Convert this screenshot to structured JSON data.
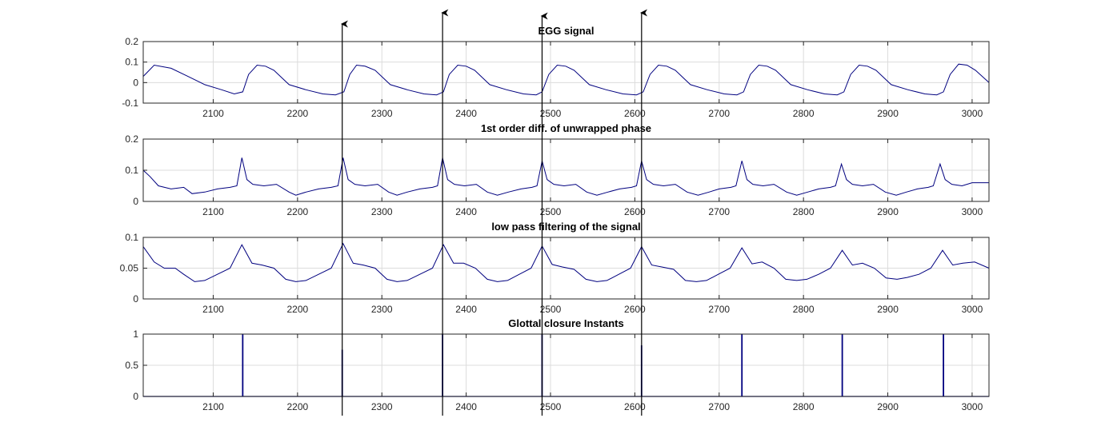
{
  "colors": {
    "series": "#00007f",
    "grid": "#dcdcdc",
    "axis": "#262626",
    "arrow": "#000000"
  },
  "chart_data": [
    {
      "type": "line",
      "title": "EGG signal",
      "xlim": [
        2017,
        3020
      ],
      "ylim": [
        -0.1,
        0.2
      ],
      "xticks": [
        "2100",
        "2200",
        "2300",
        "2400",
        "2500",
        "2600",
        "2700",
        "2800",
        "2900",
        "3000"
      ],
      "yticks": [
        "-0.1",
        "0",
        "0.1",
        "0.2"
      ],
      "grid": true,
      "series": [
        {
          "x": [
            2017,
            2030,
            2050,
            2070,
            2090,
            2110,
            2125,
            2135,
            2142,
            2152,
            2162,
            2172,
            2190,
            2210,
            2230,
            2245,
            2255,
            2262,
            2270,
            2280,
            2292,
            2310,
            2330,
            2350,
            2365,
            2373,
            2380,
            2390,
            2400,
            2410,
            2428,
            2448,
            2468,
            2483,
            2490,
            2498,
            2508,
            2518,
            2528,
            2546,
            2566,
            2586,
            2602,
            2610,
            2618,
            2628,
            2638,
            2648,
            2666,
            2686,
            2706,
            2721,
            2729,
            2737,
            2747,
            2757,
            2767,
            2785,
            2805,
            2825,
            2840,
            2848,
            2856,
            2866,
            2876,
            2886,
            2904,
            2924,
            2944,
            2958,
            2966,
            2974,
            2984,
            2994,
            3004,
            3020
          ],
          "y": [
            0.03,
            0.085,
            0.07,
            0.03,
            -0.01,
            -0.035,
            -0.055,
            -0.045,
            0.04,
            0.085,
            0.08,
            0.06,
            -0.01,
            -0.035,
            -0.055,
            -0.06,
            -0.045,
            0.04,
            0.085,
            0.08,
            0.06,
            -0.01,
            -0.035,
            -0.055,
            -0.06,
            -0.045,
            0.04,
            0.085,
            0.08,
            0.06,
            -0.01,
            -0.035,
            -0.055,
            -0.06,
            -0.045,
            0.04,
            0.085,
            0.08,
            0.06,
            -0.01,
            -0.035,
            -0.055,
            -0.06,
            -0.045,
            0.04,
            0.085,
            0.08,
            0.06,
            -0.01,
            -0.035,
            -0.055,
            -0.06,
            -0.045,
            0.04,
            0.085,
            0.08,
            0.06,
            -0.01,
            -0.035,
            -0.055,
            -0.06,
            -0.045,
            0.04,
            0.085,
            0.08,
            0.06,
            -0.01,
            -0.035,
            -0.055,
            -0.06,
            -0.045,
            0.04,
            0.09,
            0.085,
            0.06,
            0.0
          ]
        }
      ]
    },
    {
      "type": "line",
      "title": "1st order diff. of unwrapped phase",
      "xlim": [
        2017,
        3020
      ],
      "ylim": [
        0,
        0.2
      ],
      "xticks": [
        "2100",
        "2200",
        "2300",
        "2400",
        "2500",
        "2600",
        "2700",
        "2800",
        "2900",
        "3000"
      ],
      "yticks": [
        "0",
        "0.1",
        "0.2"
      ],
      "grid": true,
      "series": [
        {
          "x": [
            2017,
            2025,
            2035,
            2050,
            2065,
            2075,
            2090,
            2105,
            2120,
            2128,
            2134,
            2140,
            2147,
            2160,
            2175,
            2190,
            2198,
            2210,
            2225,
            2240,
            2248,
            2254,
            2260,
            2268,
            2280,
            2295,
            2308,
            2318,
            2330,
            2345,
            2360,
            2366,
            2372,
            2378,
            2386,
            2398,
            2412,
            2425,
            2437,
            2450,
            2465,
            2478,
            2484,
            2490,
            2496,
            2504,
            2516,
            2530,
            2543,
            2555,
            2568,
            2582,
            2596,
            2602,
            2608,
            2614,
            2622,
            2634,
            2648,
            2662,
            2675,
            2688,
            2700,
            2714,
            2720,
            2727,
            2733,
            2740,
            2752,
            2765,
            2780,
            2792,
            2805,
            2818,
            2832,
            2838,
            2845,
            2851,
            2858,
            2870,
            2883,
            2897,
            2910,
            2922,
            2935,
            2948,
            2954,
            2962,
            2968,
            2976,
            2988,
            3000,
            3020
          ],
          "y": [
            0.1,
            0.08,
            0.05,
            0.04,
            0.045,
            0.025,
            0.03,
            0.04,
            0.045,
            0.05,
            0.14,
            0.07,
            0.055,
            0.05,
            0.055,
            0.03,
            0.02,
            0.03,
            0.04,
            0.045,
            0.05,
            0.14,
            0.07,
            0.055,
            0.05,
            0.055,
            0.03,
            0.02,
            0.03,
            0.04,
            0.045,
            0.05,
            0.14,
            0.07,
            0.055,
            0.05,
            0.055,
            0.03,
            0.02,
            0.03,
            0.04,
            0.045,
            0.05,
            0.13,
            0.07,
            0.055,
            0.05,
            0.055,
            0.03,
            0.02,
            0.03,
            0.04,
            0.045,
            0.05,
            0.13,
            0.07,
            0.055,
            0.05,
            0.055,
            0.03,
            0.02,
            0.03,
            0.04,
            0.045,
            0.05,
            0.13,
            0.07,
            0.055,
            0.05,
            0.055,
            0.03,
            0.02,
            0.03,
            0.04,
            0.045,
            0.05,
            0.12,
            0.07,
            0.055,
            0.05,
            0.055,
            0.03,
            0.02,
            0.03,
            0.04,
            0.045,
            0.05,
            0.12,
            0.07,
            0.055,
            0.05,
            0.06,
            0.06
          ]
        }
      ]
    },
    {
      "type": "line",
      "title": "low pass filtering of the signal",
      "xlim": [
        2017,
        3020
      ],
      "ylim": [
        0,
        0.1
      ],
      "xticks": [
        "2100",
        "2200",
        "2300",
        "2400",
        "2500",
        "2600",
        "2700",
        "2800",
        "2900",
        "3000"
      ],
      "yticks": [
        "0",
        "0.05",
        "0.1"
      ],
      "grid": true,
      "series": [
        {
          "x": [
            2017,
            2030,
            2042,
            2055,
            2065,
            2078,
            2090,
            2105,
            2120,
            2134,
            2146,
            2158,
            2172,
            2186,
            2198,
            2210,
            2225,
            2240,
            2254,
            2266,
            2278,
            2292,
            2306,
            2318,
            2330,
            2345,
            2360,
            2373,
            2385,
            2397,
            2411,
            2425,
            2437,
            2449,
            2463,
            2477,
            2490,
            2502,
            2514,
            2528,
            2542,
            2555,
            2567,
            2581,
            2595,
            2608,
            2620,
            2632,
            2646,
            2660,
            2673,
            2685,
            2699,
            2713,
            2727,
            2739,
            2751,
            2765,
            2779,
            2792,
            2804,
            2818,
            2832,
            2846,
            2858,
            2870,
            2884,
            2898,
            2911,
            2923,
            2937,
            2951,
            2965,
            2977,
            2989,
            3003,
            3020
          ],
          "y": [
            0.085,
            0.06,
            0.05,
            0.05,
            0.04,
            0.028,
            0.03,
            0.04,
            0.05,
            0.088,
            0.058,
            0.055,
            0.05,
            0.032,
            0.028,
            0.03,
            0.04,
            0.05,
            0.09,
            0.058,
            0.055,
            0.05,
            0.032,
            0.028,
            0.03,
            0.04,
            0.05,
            0.088,
            0.058,
            0.058,
            0.05,
            0.032,
            0.028,
            0.03,
            0.04,
            0.05,
            0.086,
            0.056,
            0.052,
            0.048,
            0.032,
            0.028,
            0.03,
            0.04,
            0.05,
            0.085,
            0.055,
            0.052,
            0.048,
            0.03,
            0.028,
            0.03,
            0.04,
            0.05,
            0.083,
            0.057,
            0.06,
            0.05,
            0.032,
            0.03,
            0.032,
            0.04,
            0.05,
            0.079,
            0.055,
            0.058,
            0.05,
            0.034,
            0.032,
            0.035,
            0.04,
            0.05,
            0.079,
            0.055,
            0.058,
            0.06,
            0.05
          ]
        }
      ]
    },
    {
      "type": "impulse",
      "title": "Glottal closure Instants",
      "xlim": [
        2017,
        3020
      ],
      "ylim": [
        0,
        1
      ],
      "xticks": [
        "2100",
        "2200",
        "2300",
        "2400",
        "2500",
        "2600",
        "2700",
        "2800",
        "2900",
        "3000"
      ],
      "yticks": [
        "0",
        "0.5",
        "1"
      ],
      "grid": true,
      "series": [
        {
          "x": [
            2135,
            2253,
            2372,
            2490,
            2608,
            2727,
            2846,
            2966
          ],
          "y": [
            1,
            0.75,
            1,
            1,
            0.82,
            1,
            1,
            1
          ]
        }
      ]
    }
  ],
  "annotations": {
    "arrows_x": [
      2253,
      2372,
      2490,
      2608
    ]
  }
}
